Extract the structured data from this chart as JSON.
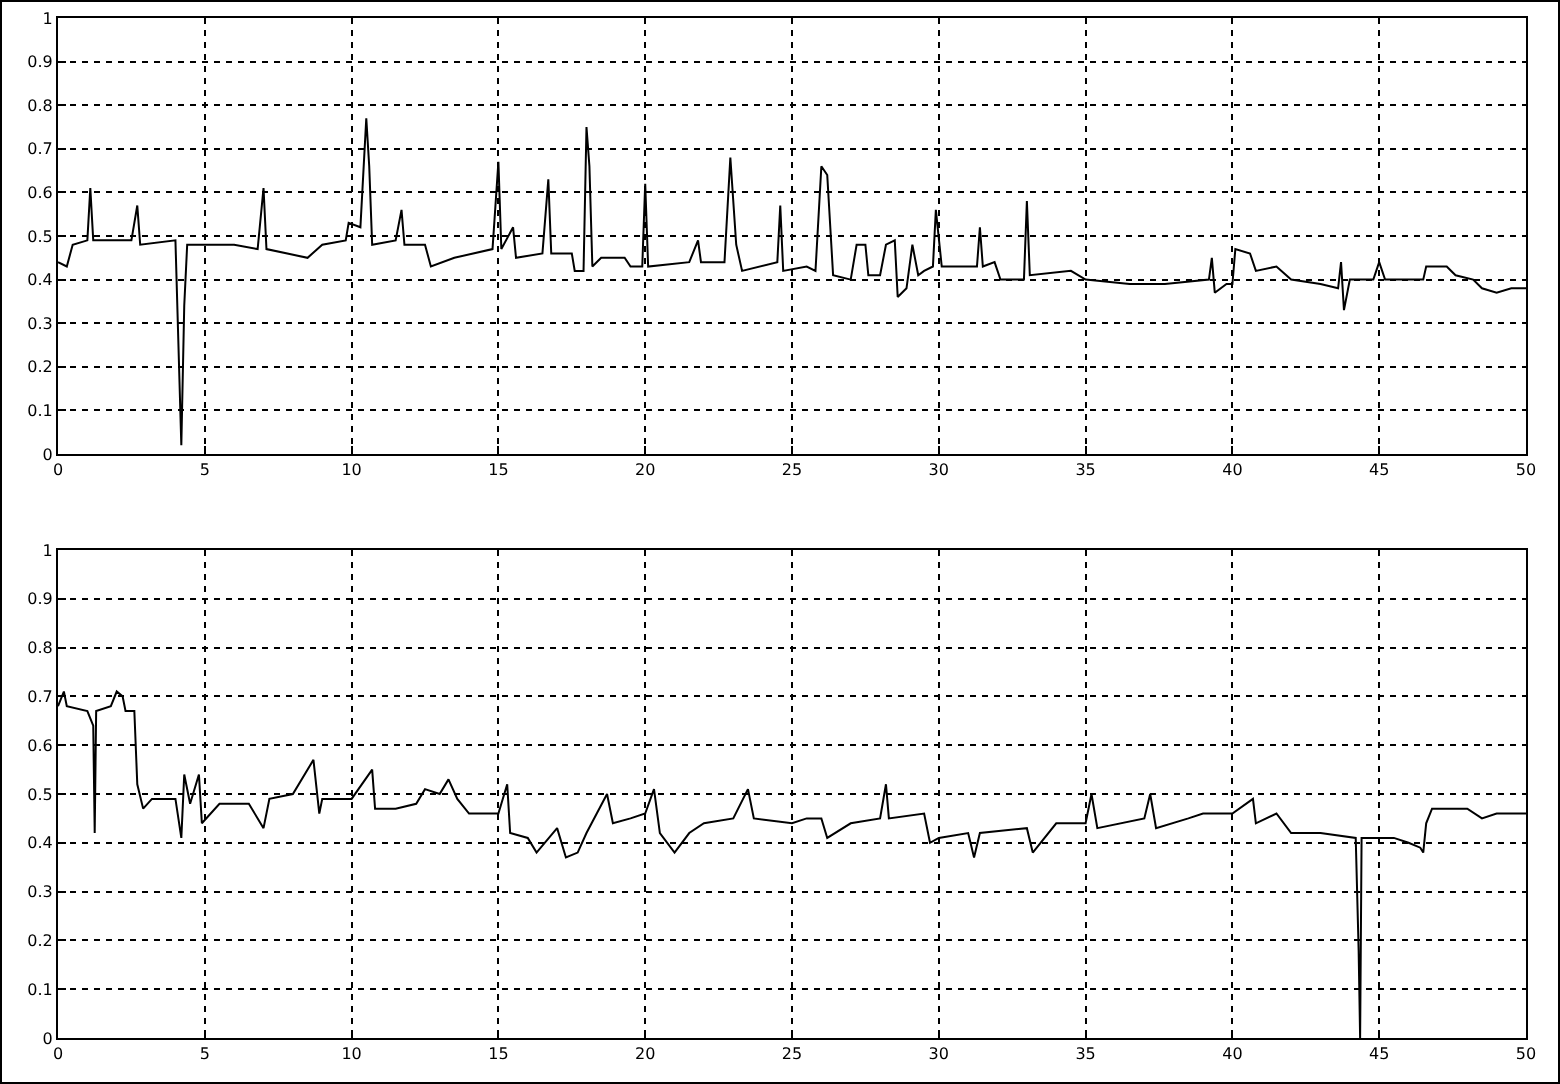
{
  "chart_data": [
    {
      "type": "line",
      "color": "#000000",
      "grid": true,
      "xlim": [
        0,
        50
      ],
      "xticks": [
        0,
        5,
        10,
        15,
        20,
        25,
        30,
        35,
        40,
        45,
        50
      ],
      "ylim": [
        0,
        1
      ],
      "yticks": [
        0,
        0.1,
        0.2,
        0.3,
        0.4,
        0.5,
        0.6,
        0.7,
        0.8,
        0.9,
        1
      ],
      "x": [
        0,
        0.3,
        0.5,
        1.0,
        1.1,
        1.2,
        2.5,
        2.7,
        2.8,
        4.0,
        4.2,
        4.3,
        4.4,
        6.0,
        6.8,
        7.0,
        7.1,
        8.5,
        9.0,
        9.8,
        9.9,
        10.3,
        10.5,
        10.6,
        10.7,
        11.5,
        11.7,
        11.8,
        12.5,
        12.7,
        13.5,
        14.8,
        15.0,
        15.1,
        15.5,
        15.6,
        16.5,
        16.7,
        16.8,
        17.5,
        17.6,
        17.9,
        18.0,
        18.1,
        18.2,
        18.5,
        19.3,
        19.5,
        19.9,
        20.0,
        20.1,
        21.5,
        21.8,
        21.9,
        22.7,
        22.9,
        23.1,
        23.3,
        24.5,
        24.6,
        24.7,
        25.5,
        25.8,
        26.0,
        26.2,
        26.4,
        27.0,
        27.2,
        27.5,
        27.6,
        28.0,
        28.2,
        28.5,
        28.6,
        28.9,
        29.1,
        29.3,
        29.5,
        29.8,
        29.9,
        30.1,
        31.3,
        31.4,
        31.5,
        31.9,
        32.1,
        32.9,
        33.0,
        33.1,
        34.5,
        35.0,
        36.5,
        37.7,
        39.2,
        39.3,
        39.4,
        39.8,
        40.0,
        40.1,
        40.6,
        40.8,
        41.5,
        42.0,
        43.0,
        43.6,
        43.7,
        43.8,
        44.0,
        44.8,
        45.0,
        45.2,
        46.5,
        46.6,
        47.3,
        47.6,
        48.2,
        48.5,
        49.0,
        49.5,
        50
      ],
      "values": [
        0.44,
        0.43,
        0.48,
        0.49,
        0.61,
        0.49,
        0.49,
        0.57,
        0.48,
        0.49,
        0.02,
        0.34,
        0.48,
        0.48,
        0.47,
        0.61,
        0.47,
        0.45,
        0.48,
        0.49,
        0.53,
        0.52,
        0.77,
        0.66,
        0.48,
        0.49,
        0.56,
        0.48,
        0.48,
        0.43,
        0.45,
        0.47,
        0.67,
        0.47,
        0.52,
        0.45,
        0.46,
        0.63,
        0.46,
        0.46,
        0.42,
        0.42,
        0.75,
        0.66,
        0.43,
        0.45,
        0.45,
        0.43,
        0.43,
        0.62,
        0.43,
        0.44,
        0.49,
        0.44,
        0.44,
        0.68,
        0.48,
        0.42,
        0.44,
        0.57,
        0.42,
        0.43,
        0.42,
        0.66,
        0.64,
        0.41,
        0.4,
        0.48,
        0.48,
        0.41,
        0.41,
        0.48,
        0.49,
        0.36,
        0.38,
        0.48,
        0.41,
        0.42,
        0.43,
        0.56,
        0.43,
        0.43,
        0.52,
        0.43,
        0.44,
        0.4,
        0.4,
        0.58,
        0.41,
        0.42,
        0.4,
        0.39,
        0.39,
        0.4,
        0.45,
        0.37,
        0.39,
        0.39,
        0.47,
        0.46,
        0.42,
        0.43,
        0.4,
        0.39,
        0.38,
        0.44,
        0.33,
        0.4,
        0.4,
        0.44,
        0.4,
        0.4,
        0.43,
        0.43,
        0.41,
        0.4,
        0.38,
        0.37,
        0.38,
        0.38
      ]
    },
    {
      "type": "line",
      "color": "#000000",
      "grid": true,
      "xlim": [
        0,
        50
      ],
      "xticks": [
        0,
        5,
        10,
        15,
        20,
        25,
        30,
        35,
        40,
        45,
        50
      ],
      "ylim": [
        0,
        1
      ],
      "yticks": [
        0,
        0.1,
        0.2,
        0.3,
        0.4,
        0.5,
        0.6,
        0.7,
        0.8,
        0.9,
        1
      ],
      "x": [
        0,
        0.2,
        0.3,
        1.0,
        1.2,
        1.25,
        1.3,
        1.8,
        2.0,
        2.2,
        2.3,
        2.6,
        2.7,
        2.9,
        3.2,
        4.0,
        4.2,
        4.3,
        4.5,
        4.8,
        4.9,
        5.5,
        6.5,
        7.0,
        7.2,
        8.0,
        8.7,
        8.9,
        9.0,
        10.0,
        10.7,
        10.8,
        11.5,
        12.2,
        12.5,
        13.0,
        13.3,
        13.6,
        14.0,
        15.0,
        15.3,
        15.4,
        16.0,
        16.3,
        17.0,
        17.3,
        17.7,
        18.0,
        18.7,
        18.9,
        19.5,
        20.0,
        20.3,
        20.5,
        21.0,
        21.5,
        22.0,
        23.0,
        23.5,
        23.7,
        25.0,
        25.5,
        26.0,
        26.2,
        27.0,
        28.0,
        28.2,
        28.3,
        29.5,
        29.7,
        30.0,
        31.0,
        31.2,
        31.4,
        33.0,
        33.2,
        34.0,
        35.0,
        35.2,
        35.4,
        37.0,
        37.2,
        37.4,
        38.5,
        39.0,
        40.0,
        40.7,
        40.8,
        41.5,
        42.0,
        43.0,
        44.2,
        44.3,
        44.35,
        44.4,
        45.5,
        46.0,
        46.4,
        46.5,
        46.6,
        46.8,
        48.0,
        48.5,
        49.0,
        50
      ],
      "values": [
        0.68,
        0.71,
        0.68,
        0.67,
        0.64,
        0.42,
        0.67,
        0.68,
        0.71,
        0.7,
        0.67,
        0.67,
        0.52,
        0.47,
        0.49,
        0.49,
        0.41,
        0.54,
        0.48,
        0.54,
        0.44,
        0.48,
        0.48,
        0.43,
        0.49,
        0.5,
        0.57,
        0.46,
        0.49,
        0.49,
        0.55,
        0.47,
        0.47,
        0.48,
        0.51,
        0.5,
        0.53,
        0.49,
        0.46,
        0.46,
        0.52,
        0.42,
        0.41,
        0.38,
        0.43,
        0.37,
        0.38,
        0.42,
        0.5,
        0.44,
        0.45,
        0.46,
        0.51,
        0.42,
        0.38,
        0.42,
        0.44,
        0.45,
        0.51,
        0.45,
        0.44,
        0.45,
        0.45,
        0.41,
        0.44,
        0.45,
        0.52,
        0.45,
        0.46,
        0.4,
        0.41,
        0.42,
        0.37,
        0.42,
        0.43,
        0.38,
        0.44,
        0.44,
        0.5,
        0.43,
        0.45,
        0.5,
        0.43,
        0.45,
        0.46,
        0.46,
        0.49,
        0.44,
        0.46,
        0.42,
        0.42,
        0.41,
        0.18,
        0,
        0.41,
        0.41,
        0.4,
        0.39,
        0.38,
        0.44,
        0.47,
        0.47,
        0.45,
        0.46,
        0.46
      ]
    }
  ]
}
